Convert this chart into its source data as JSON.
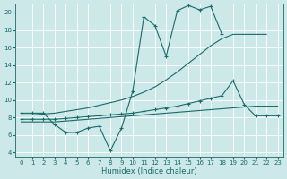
{
  "xlabel": "Humidex (Indice chaleur)",
  "bg_color": "#cce8e8",
  "grid_color": "#b8d8d8",
  "line_color": "#1a6b6b",
  "xlim": [
    -0.5,
    23.5
  ],
  "ylim": [
    3.5,
    21.0
  ],
  "xticks": [
    0,
    1,
    2,
    3,
    4,
    5,
    6,
    7,
    8,
    9,
    10,
    11,
    12,
    13,
    14,
    15,
    16,
    17,
    18,
    19,
    20,
    21,
    22,
    23
  ],
  "yticks": [
    4,
    6,
    8,
    10,
    12,
    14,
    16,
    18,
    20
  ],
  "line_top_x": [
    0,
    1,
    2,
    3,
    4,
    5,
    6,
    7,
    8,
    9,
    10,
    11,
    12,
    13,
    14,
    15,
    16,
    17,
    18
  ],
  "line_top_y": [
    8.5,
    8.5,
    8.5,
    7.2,
    6.3,
    6.3,
    6.8,
    7.0,
    4.2,
    6.8,
    11.0,
    19.5,
    18.5,
    15.0,
    20.2,
    20.8,
    20.3,
    20.7,
    17.5
  ],
  "line_upper_mid_x": [
    0,
    1,
    2,
    3,
    4,
    5,
    6,
    7,
    8,
    9,
    10,
    11,
    12,
    13,
    14,
    15,
    16,
    17,
    18,
    19,
    20,
    21,
    22
  ],
  "line_upper_mid_y": [
    8.3,
    8.3,
    8.4,
    8.5,
    8.7,
    8.9,
    9.1,
    9.4,
    9.7,
    10.0,
    10.4,
    10.9,
    11.5,
    12.3,
    13.2,
    14.2,
    15.2,
    16.2,
    17.0,
    17.5,
    17.5,
    17.5,
    17.5
  ],
  "line_lower_mid_x": [
    0,
    1,
    2,
    3,
    4,
    5,
    6,
    7,
    8,
    9,
    10,
    11,
    12,
    13,
    14,
    15,
    16,
    17,
    18,
    19,
    20,
    21,
    22,
    23
  ],
  "line_lower_mid_y": [
    7.8,
    7.8,
    7.8,
    7.8,
    7.9,
    8.0,
    8.1,
    8.2,
    8.3,
    8.4,
    8.5,
    8.7,
    8.9,
    9.1,
    9.3,
    9.6,
    9.9,
    10.2,
    10.5,
    12.2,
    9.5,
    8.2,
    8.2,
    8.2
  ],
  "line_bot_x": [
    0,
    1,
    2,
    3,
    4,
    5,
    6,
    7,
    8,
    9,
    10,
    11,
    12,
    13,
    14,
    15,
    16,
    17,
    18,
    19,
    20,
    21,
    22,
    23
  ],
  "line_bot_y": [
    7.5,
    7.5,
    7.5,
    7.5,
    7.6,
    7.7,
    7.8,
    7.9,
    8.0,
    8.1,
    8.2,
    8.3,
    8.4,
    8.5,
    8.6,
    8.7,
    8.8,
    8.9,
    9.0,
    9.1,
    9.2,
    9.3,
    9.3,
    9.3
  ]
}
